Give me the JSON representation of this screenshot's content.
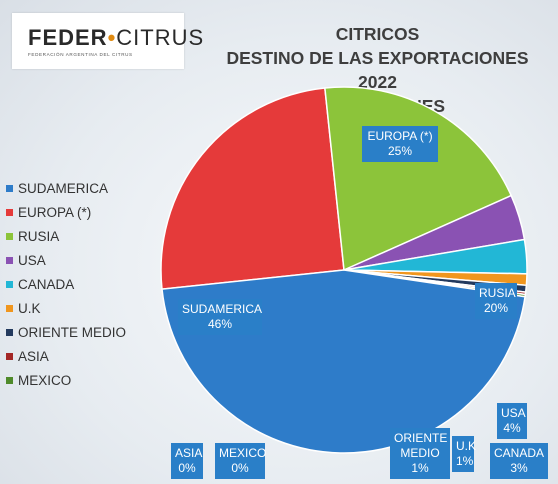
{
  "logo": {
    "name_left": "FEDER",
    "name_right": "CITRUS",
    "subtitle": "FEDERACIÓN ARGENTINA DEL CITRUS"
  },
  "chart_data": {
    "type": "pie",
    "title": [
      "CITRICOS",
      "DESTINO DE LAS EXPORTACIONES 2022",
      "POR REGIONES"
    ],
    "legend_position": "left",
    "slices": [
      {
        "label": "SUDAMERICA",
        "value_label": "46%",
        "value": 46,
        "color": "#2e7cc9"
      },
      {
        "label": "EUROPA (*)",
        "value_label": "25%",
        "value": 25,
        "color": "#e53a3a"
      },
      {
        "label": "RUSIA",
        "value_label": "20%",
        "value": 20,
        "color": "#8cc43a"
      },
      {
        "label": "USA",
        "value_label": "4%",
        "value": 4,
        "color": "#8a52b3"
      },
      {
        "label": "CANADA",
        "value_label": "3%",
        "value": 3,
        "color": "#22b7d6"
      },
      {
        "label": "U.K",
        "value_label": "1%",
        "value": 1,
        "color": "#f0961e"
      },
      {
        "label": "ORIENTE MEDIO",
        "value_label": "1%",
        "value": 0.6,
        "color": "#233a5e"
      },
      {
        "label": "ASIA",
        "value_label": "0%",
        "value": 0.2,
        "color": "#a32626"
      },
      {
        "label": "MEXICO",
        "value_label": "0%",
        "value": 0.2,
        "color": "#4f8a2a"
      }
    ]
  }
}
